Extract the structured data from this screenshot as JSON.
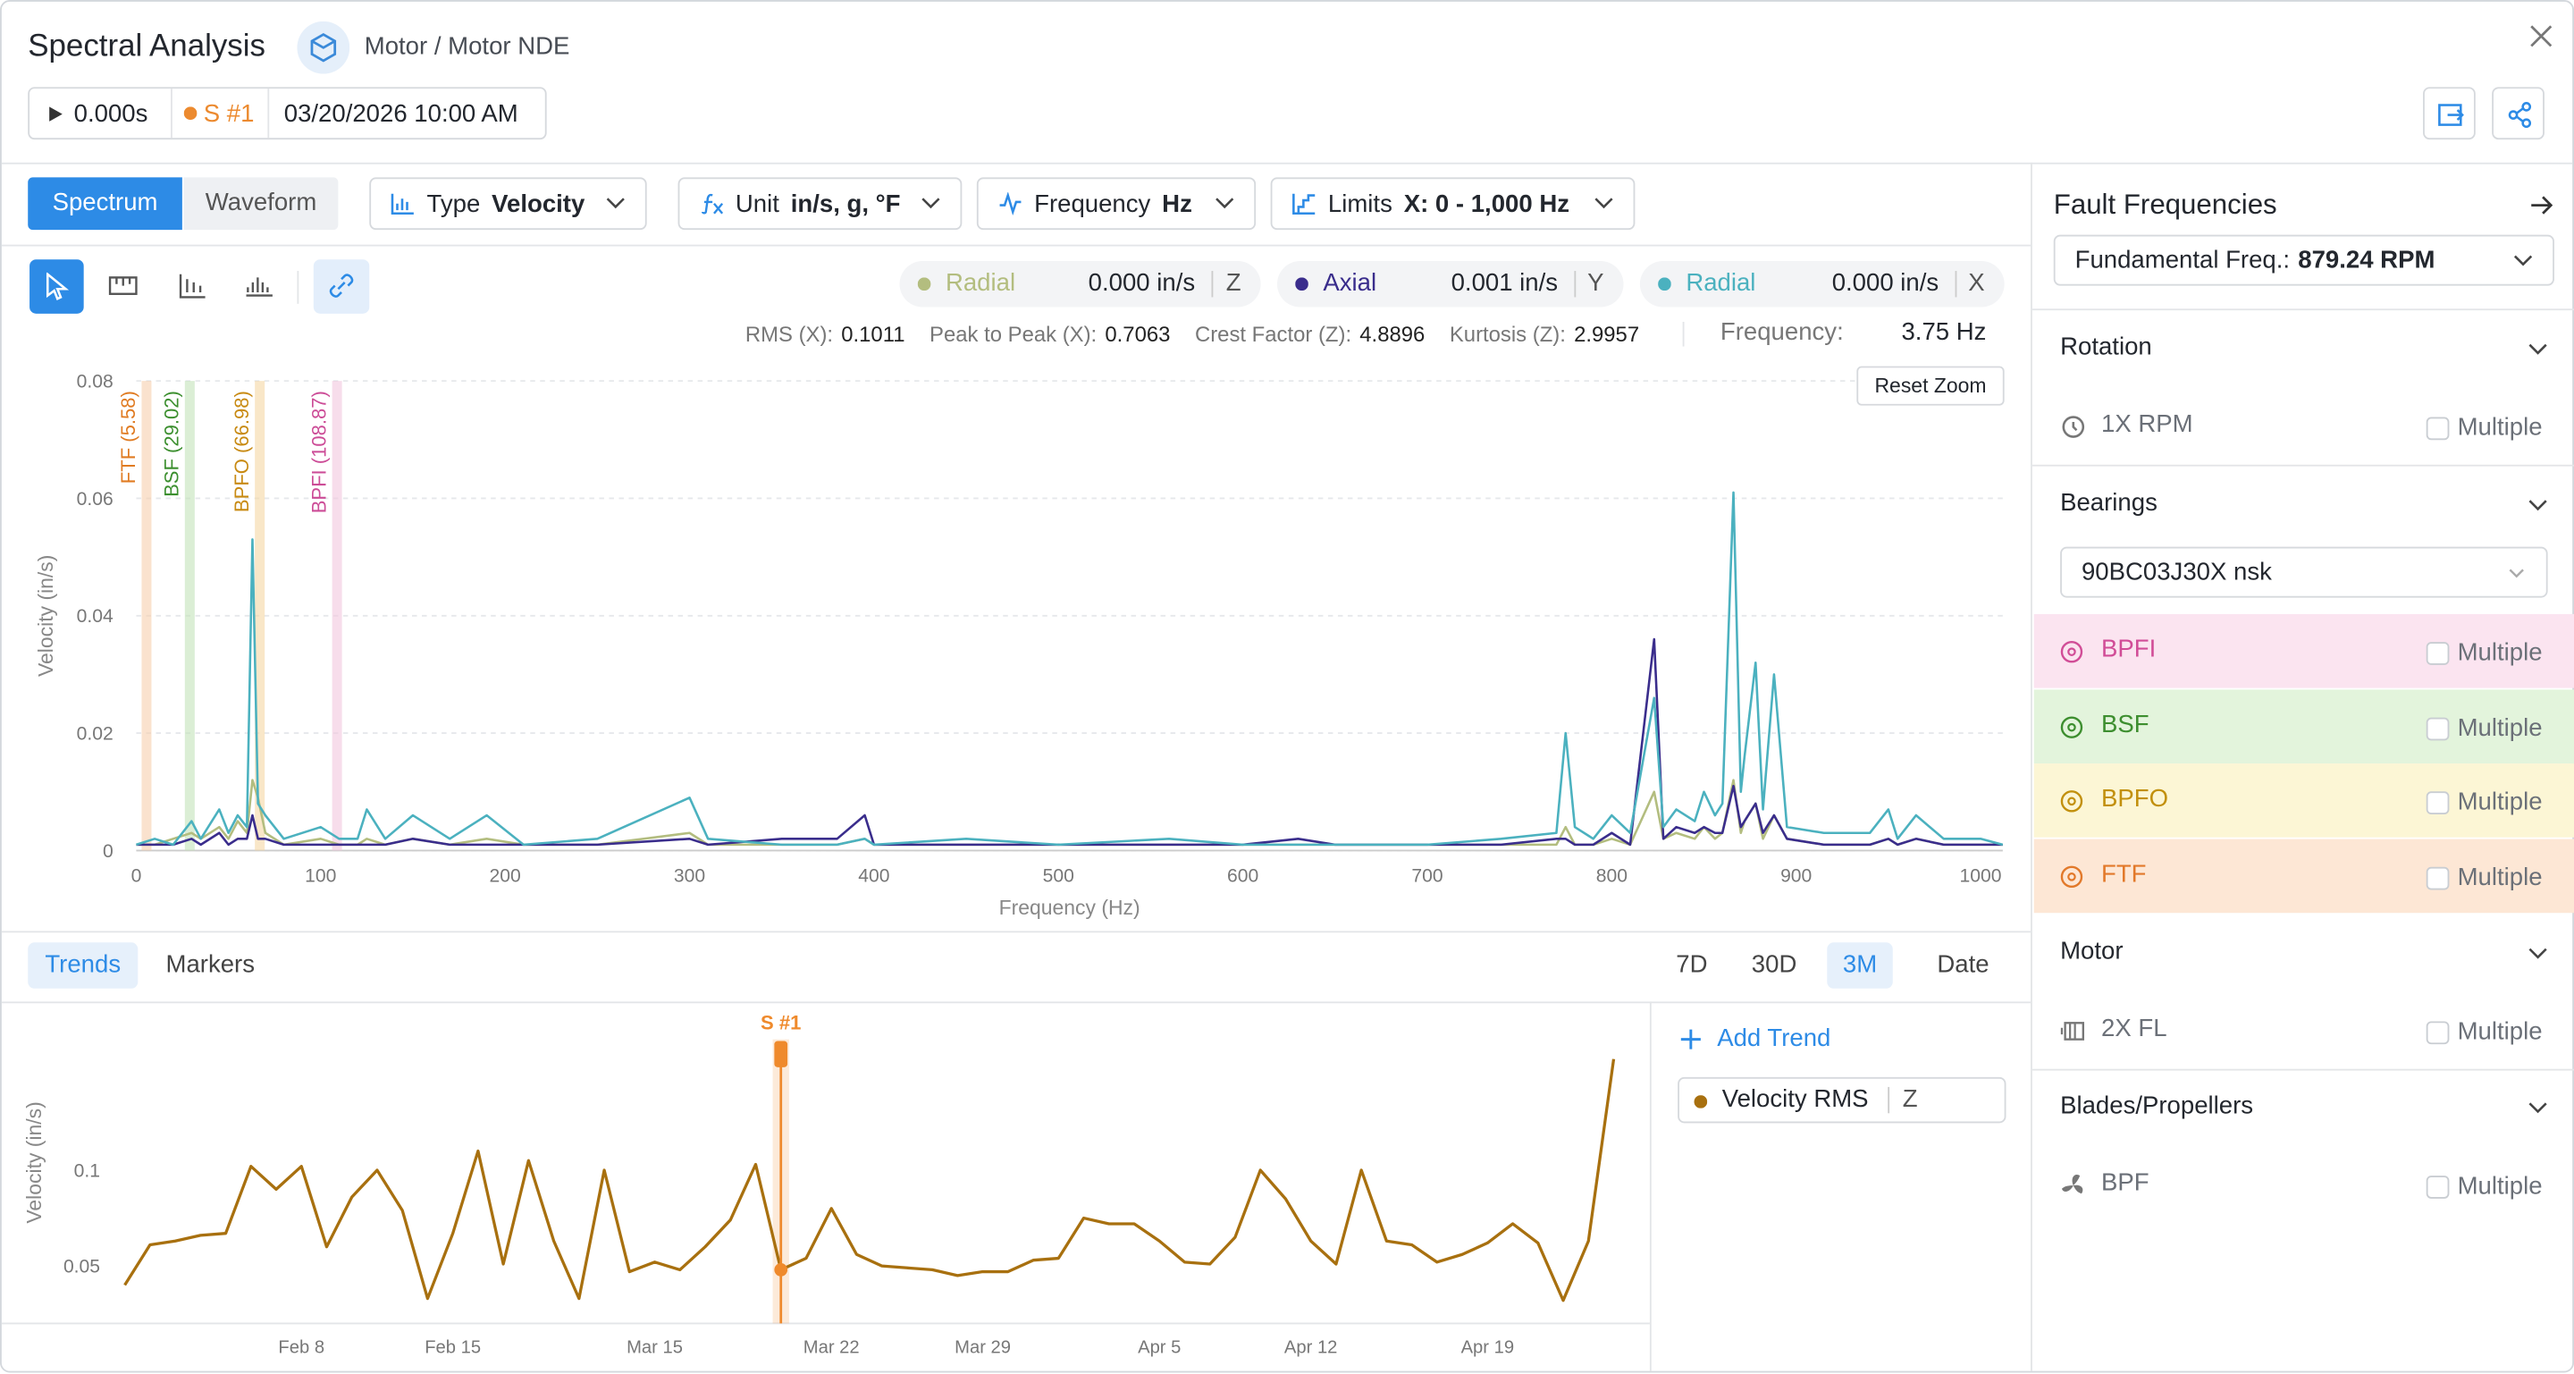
{
  "header": {
    "title": "Spectral Analysis",
    "breadcrumb": "Motor / Motor NDE",
    "time": "0.000s",
    "sensor": "S #1",
    "sensor_color": "#ec8a2f",
    "datetime": "03/20/2026 10:00 AM"
  },
  "toolbar": {
    "views": [
      "Spectrum",
      "Waveform"
    ],
    "dropdowns": [
      {
        "label": "Type",
        "value": "Velocity"
      },
      {
        "label": "Unit",
        "value": "in/s, g, °F"
      },
      {
        "label": "Frequency",
        "value": "Hz"
      },
      {
        "label": "Limits",
        "value": "X: 0 - 1,000 Hz"
      }
    ]
  },
  "stats": [
    {
      "label": "RMS (X):",
      "value": 0.1011
    },
    {
      "label": "Peak to Peak (X):",
      "value": 0.7063
    },
    {
      "label": "Crest Factor (Z):",
      "value": 4.8896
    },
    {
      "label": "Kurtosis (Z):",
      "value": 2.9957
    }
  ],
  "frequency": {
    "label": "Frequency:",
    "value": "3.75 Hz"
  },
  "reset_zoom": "Reset Zoom",
  "spectrum_chart": {
    "type": "line",
    "y_label": "Velocity (in/s)",
    "x_label": "Frequency (Hz)",
    "xlim": [
      0,
      1012
    ],
    "ylim": [
      0,
      0.08
    ],
    "xticks": [
      0,
      100,
      200,
      300,
      400,
      500,
      600,
      700,
      800,
      900,
      1000
    ],
    "yticks": [
      0,
      0.02,
      0.04,
      0.06,
      0.08
    ],
    "grid": true,
    "fault_markers": [
      {
        "label": "FTF (5.58)",
        "x": 5.58,
        "color": "#e07b22",
        "band_color": "#f7cfae"
      },
      {
        "label": "BSF (29.02)",
        "x": 29.02,
        "color": "#3c8f2f",
        "band_color": "#c3e3b9"
      },
      {
        "label": "BPFO (66.98)",
        "x": 66.98,
        "color": "#c88a12",
        "band_color": "#f5d7a3"
      },
      {
        "label": "BPFI (108.87)",
        "x": 108.87,
        "color": "#cc4c97",
        "band_color": "#f2c6de"
      }
    ],
    "x": [
      0,
      10,
      20,
      30,
      35,
      45,
      50,
      55,
      60,
      63,
      66,
      70,
      80,
      100,
      110,
      120,
      125,
      135,
      150,
      170,
      190,
      210,
      250,
      300,
      310,
      350,
      380,
      395,
      400,
      450,
      500,
      560,
      600,
      630,
      650,
      700,
      740,
      770,
      775,
      780,
      790,
      800,
      810,
      823,
      828,
      835,
      845,
      850,
      856,
      860,
      866,
      870,
      872,
      878,
      882,
      888,
      895,
      915,
      940,
      950,
      955,
      965,
      980,
      1000,
      1012
    ],
    "series": [
      {
        "name": "Radial",
        "axis": "Z",
        "reading": "0.000 in/s",
        "color": "#b3bd7f",
        "values": [
          0.001,
          0.001,
          0.002,
          0.003,
          0.002,
          0.004,
          0.002,
          0.005,
          0.003,
          0.012,
          0.009,
          0.003,
          0.001,
          0.002,
          0.001,
          0.001,
          0.002,
          0.001,
          0.002,
          0.001,
          0.002,
          0.001,
          0.001,
          0.003,
          0.001,
          0.001,
          0.001,
          0.002,
          0.001,
          0.001,
          0.001,
          0.001,
          0.001,
          0.001,
          0.001,
          0.001,
          0.001,
          0.001,
          0.004,
          0.001,
          0.001,
          0.002,
          0.001,
          0.01,
          0.002,
          0.003,
          0.002,
          0.004,
          0.002,
          0.003,
          0.012,
          0.003,
          0.005,
          0.008,
          0.002,
          0.006,
          0.002,
          0.001,
          0.001,
          0.002,
          0.001,
          0.002,
          0.001,
          0.001,
          0.001
        ]
      },
      {
        "name": "Axial",
        "axis": "Y",
        "reading": "0.001 in/s",
        "color": "#3a2d8c",
        "values": [
          0.001,
          0.001,
          0.001,
          0.002,
          0.001,
          0.003,
          0.001,
          0.002,
          0.002,
          0.006,
          0.002,
          0.002,
          0.001,
          0.001,
          0.001,
          0.001,
          0.001,
          0.001,
          0.002,
          0.001,
          0.001,
          0.001,
          0.001,
          0.002,
          0.001,
          0.002,
          0.002,
          0.006,
          0.001,
          0.001,
          0.001,
          0.001,
          0.001,
          0.002,
          0.001,
          0.001,
          0.001,
          0.002,
          0.002,
          0.001,
          0.001,
          0.003,
          0.001,
          0.036,
          0.002,
          0.004,
          0.003,
          0.004,
          0.003,
          0.003,
          0.011,
          0.004,
          0.005,
          0.008,
          0.003,
          0.006,
          0.002,
          0.001,
          0.001,
          0.002,
          0.001,
          0.002,
          0.001,
          0.001,
          0.001
        ]
      },
      {
        "name": "Radial",
        "axis": "X",
        "reading": "0.000 in/s",
        "color": "#4bb1bf",
        "values": [
          0.001,
          0.002,
          0.001,
          0.005,
          0.002,
          0.007,
          0.003,
          0.006,
          0.004,
          0.053,
          0.008,
          0.006,
          0.002,
          0.004,
          0.002,
          0.002,
          0.007,
          0.002,
          0.006,
          0.002,
          0.006,
          0.001,
          0.002,
          0.009,
          0.002,
          0.001,
          0.001,
          0.002,
          0.001,
          0.002,
          0.001,
          0.002,
          0.001,
          0.001,
          0.001,
          0.001,
          0.002,
          0.003,
          0.02,
          0.004,
          0.002,
          0.006,
          0.003,
          0.026,
          0.004,
          0.007,
          0.005,
          0.01,
          0.006,
          0.008,
          0.061,
          0.01,
          0.016,
          0.032,
          0.007,
          0.03,
          0.004,
          0.003,
          0.003,
          0.007,
          0.002,
          0.006,
          0.002,
          0.002,
          0.001
        ]
      }
    ]
  },
  "trend_panel": {
    "tabs": [
      "Trends",
      "Markers"
    ],
    "ranges": [
      "7D",
      "30D",
      "3M",
      "Date"
    ],
    "add_trend": "Add Trend"
  },
  "trend_chart": {
    "type": "line",
    "y_label": "Velocity (in/s)",
    "ylim": [
      0.02,
      0.17
    ],
    "yticks": [
      0.05,
      0.1
    ],
    "grid": false,
    "categories": [
      null,
      null,
      null,
      null,
      null,
      null,
      null,
      "Feb 8",
      null,
      null,
      null,
      null,
      null,
      "Feb 15",
      null,
      null,
      null,
      null,
      null,
      null,
      null,
      "Mar 15",
      null,
      null,
      null,
      null,
      null,
      null,
      "Mar 22",
      null,
      null,
      null,
      null,
      null,
      "Mar 29",
      null,
      null,
      null,
      null,
      null,
      null,
      "Apr 5",
      null,
      null,
      null,
      null,
      null,
      "Apr 12",
      null,
      null,
      null,
      null,
      null,
      null,
      "Apr 19",
      null,
      null,
      null,
      null,
      null
    ],
    "marker": {
      "label": "S #1",
      "index": 26,
      "color": "#ef8a2c"
    },
    "series": [
      {
        "name": "Velocity RMS",
        "axis": "Z",
        "color": "#a8700f",
        "values": [
          0.04,
          0.061,
          0.063,
          0.066,
          0.067,
          0.102,
          0.09,
          0.102,
          0.06,
          0.086,
          0.1,
          0.079,
          0.033,
          0.067,
          0.11,
          0.051,
          0.105,
          0.063,
          0.033,
          0.1,
          0.047,
          0.052,
          0.048,
          0.06,
          0.074,
          0.103,
          0.048,
          0.054,
          0.08,
          0.056,
          0.05,
          0.049,
          0.048,
          0.045,
          0.047,
          0.047,
          0.053,
          0.054,
          0.075,
          0.072,
          0.072,
          0.063,
          0.052,
          0.051,
          0.065,
          0.1,
          0.085,
          0.063,
          0.051,
          0.1,
          0.063,
          0.061,
          0.052,
          0.056,
          0.062,
          0.072,
          0.062,
          0.032,
          0.063,
          0.158
        ]
      }
    ]
  },
  "fault_panel": {
    "title": "Fault Frequencies",
    "fundamental": {
      "label": "Fundamental Freq.:",
      "value": "879.24 RPM"
    },
    "checkbox_label": "Multiple",
    "sections": [
      {
        "title": "Rotation",
        "items": [
          {
            "label": "1X RPM"
          }
        ]
      },
      {
        "title": "Bearings",
        "select": "90BC03J30X nsk",
        "items": [
          {
            "label": "BPFI",
            "color": "#d14d97",
            "background": "#fbe4f0"
          },
          {
            "label": "BSF",
            "color": "#3d8e2f",
            "background": "#e3f4dc"
          },
          {
            "label": "BPFO",
            "color": "#c2900d",
            "background": "#fcf6d5"
          },
          {
            "label": "FTF",
            "color": "#e2792a",
            "background": "#fde7d5"
          }
        ]
      },
      {
        "title": "Motor",
        "items": [
          {
            "label": "2X FL"
          }
        ]
      },
      {
        "title": "Blades/Propellers",
        "items": [
          {
            "label": "BPF"
          }
        ]
      }
    ]
  }
}
